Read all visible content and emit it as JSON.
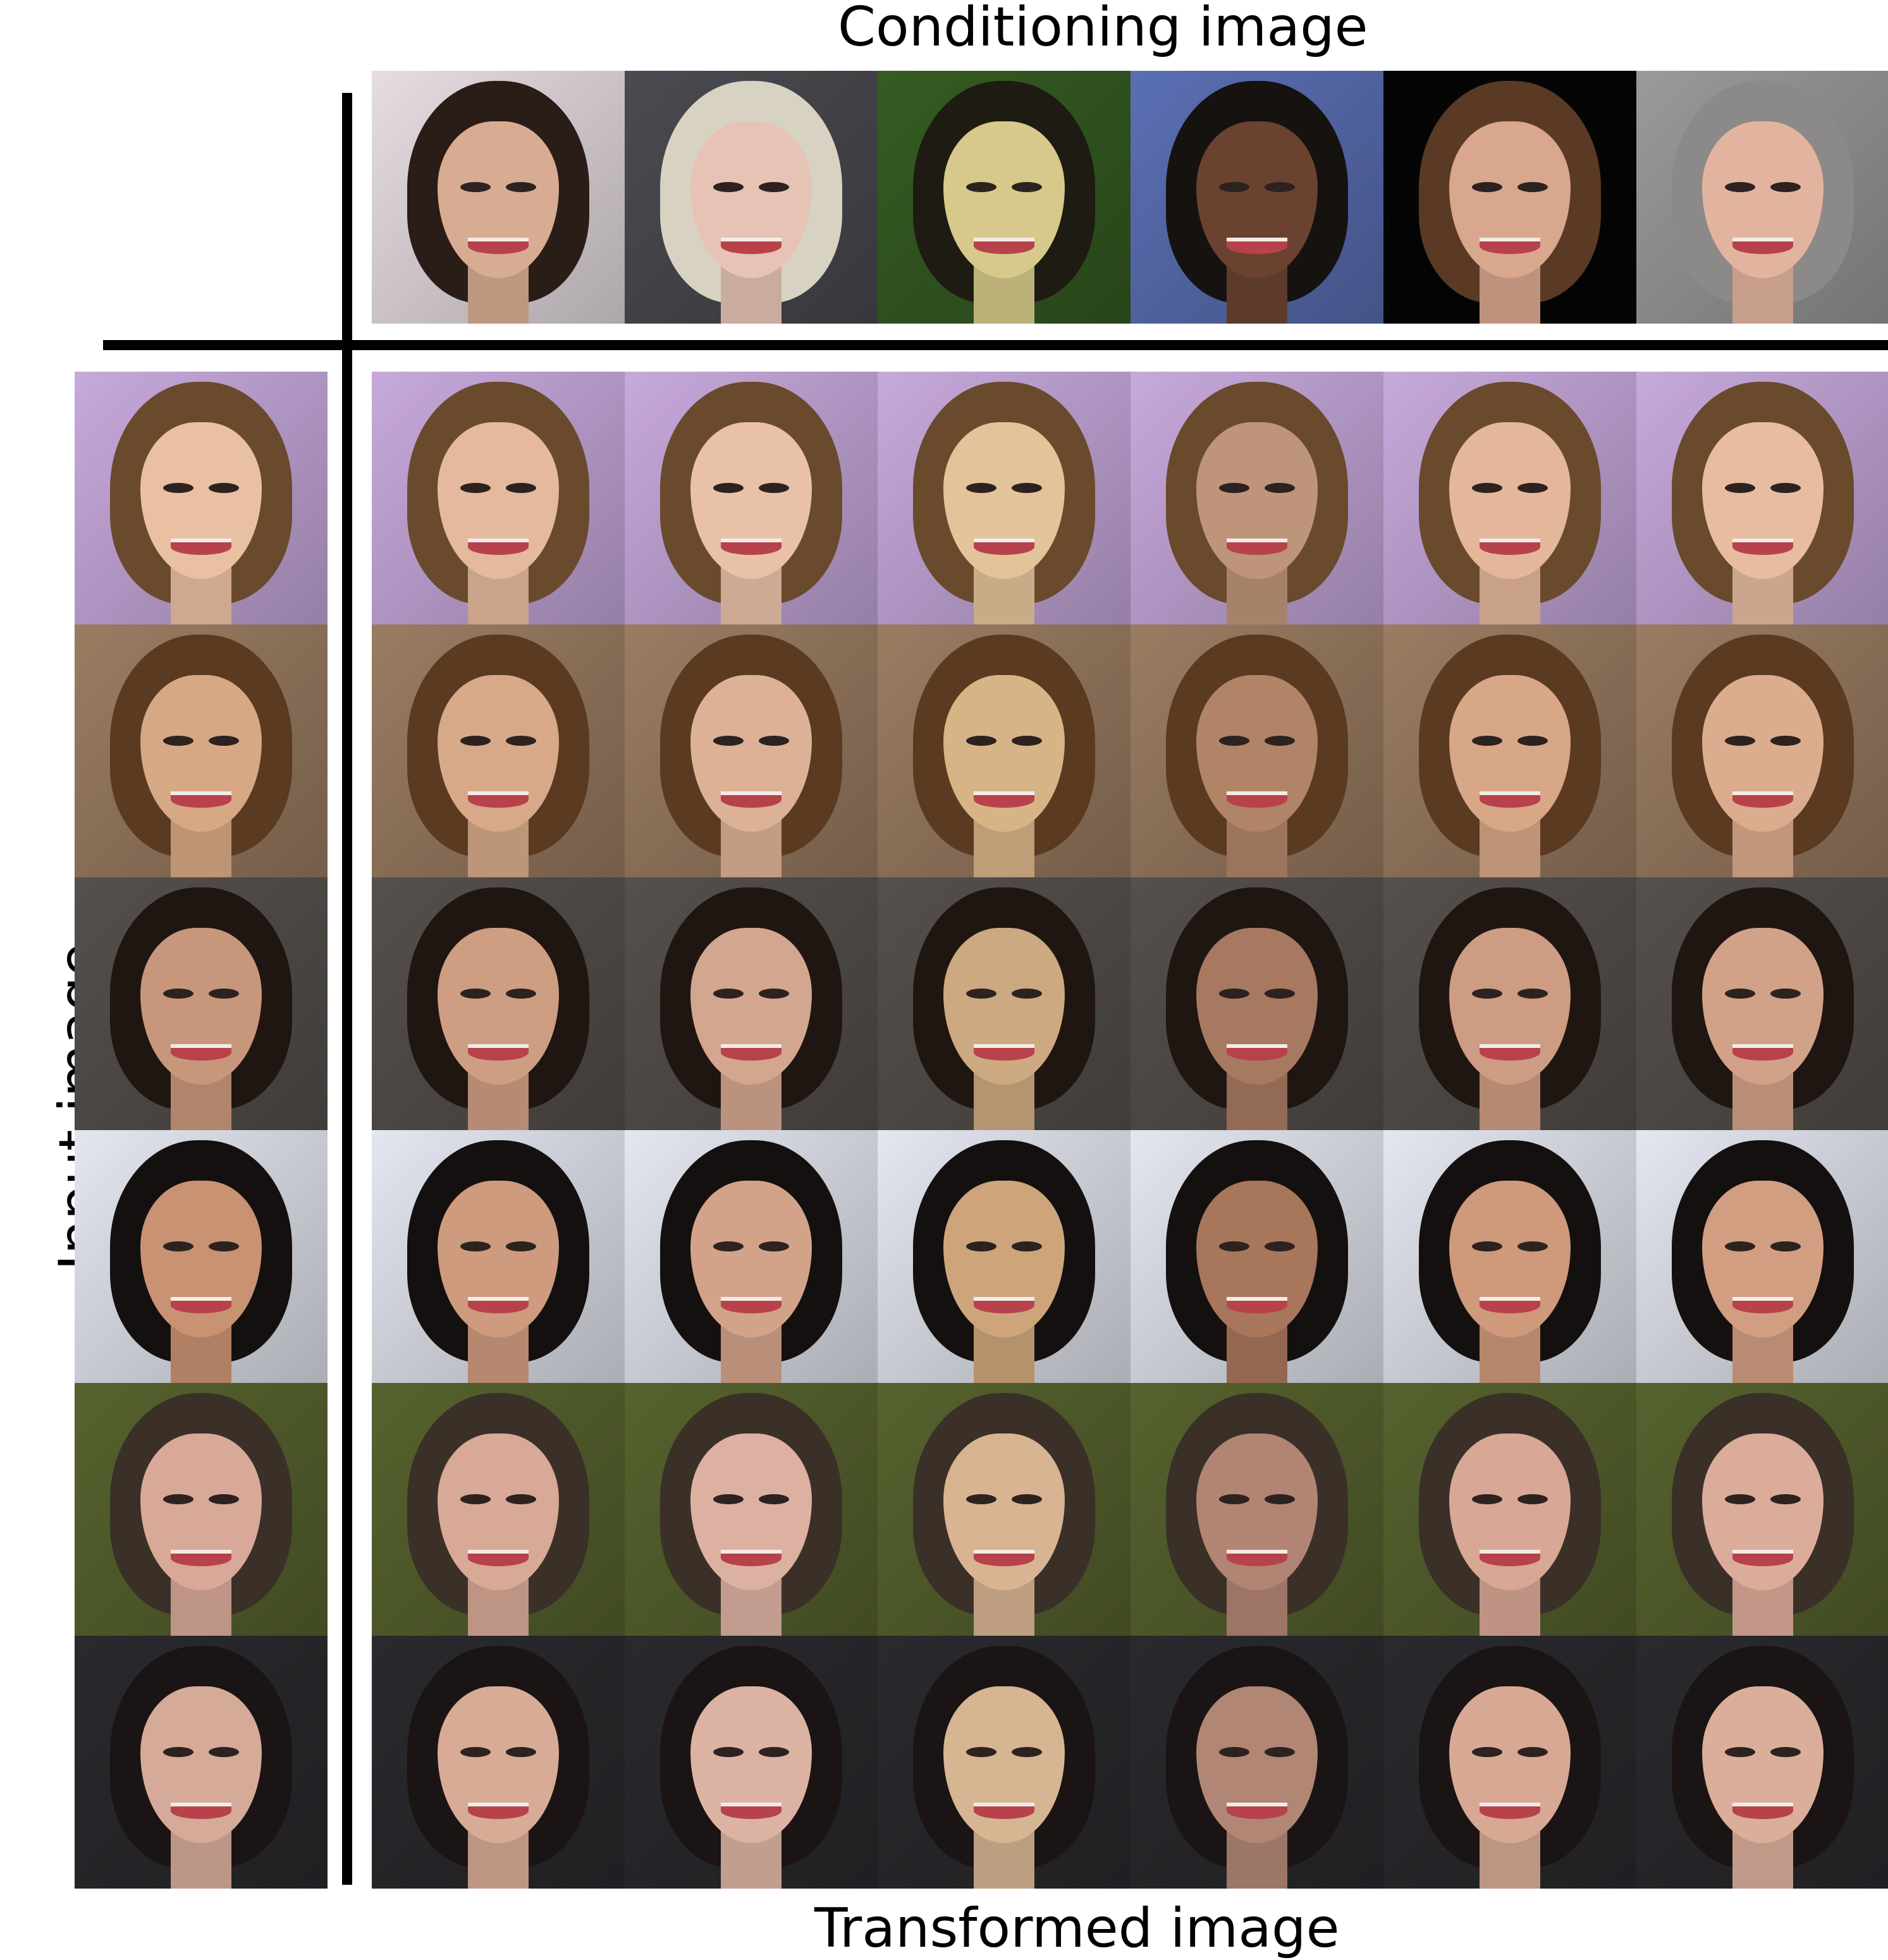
{
  "labels": {
    "top": "Conditioning image",
    "side": "Input image",
    "bottom": "Transformed image"
  },
  "conditioning": [
    {
      "bg": "#e6dde2",
      "skin": "#d8ac93",
      "hair": "#2a1d17"
    },
    {
      "bg": "#4a4a50",
      "skin": "#e6c3b4",
      "hair": "#d8d2c2"
    },
    {
      "bg": "#355c22",
      "skin": "#d7c98b",
      "hair": "#1e1b12"
    },
    {
      "bg": "#5a6fb4",
      "skin": "#6b4230",
      "hair": "#161210"
    },
    {
      "bg": "#050505",
      "skin": "#d9a68e",
      "hair": "#5a3a24"
    },
    {
      "bg": "#9a9a9a",
      "skin": "#e2b49f",
      "hair": "#8c8a88"
    }
  ],
  "inputs": [
    {
      "bg": "#c7a9dc",
      "skin": "#eac0a2",
      "hair": "#6a4a2c"
    },
    {
      "bg": "#9a7c62",
      "skin": "#d7a884",
      "hair": "#5a3a20"
    },
    {
      "bg": "#55504c",
      "skin": "#c8977b",
      "hair": "#1f1612"
    },
    {
      "bg": "#e4e6f0",
      "skin": "#c99272",
      "hair": "#141010"
    },
    {
      "bg": "#56622e",
      "skin": "#d8a898",
      "hair": "#3a3028"
    },
    {
      "bg": "#2a2a2e",
      "skin": "#d6aa98",
      "hair": "#1a1414"
    }
  ]
}
